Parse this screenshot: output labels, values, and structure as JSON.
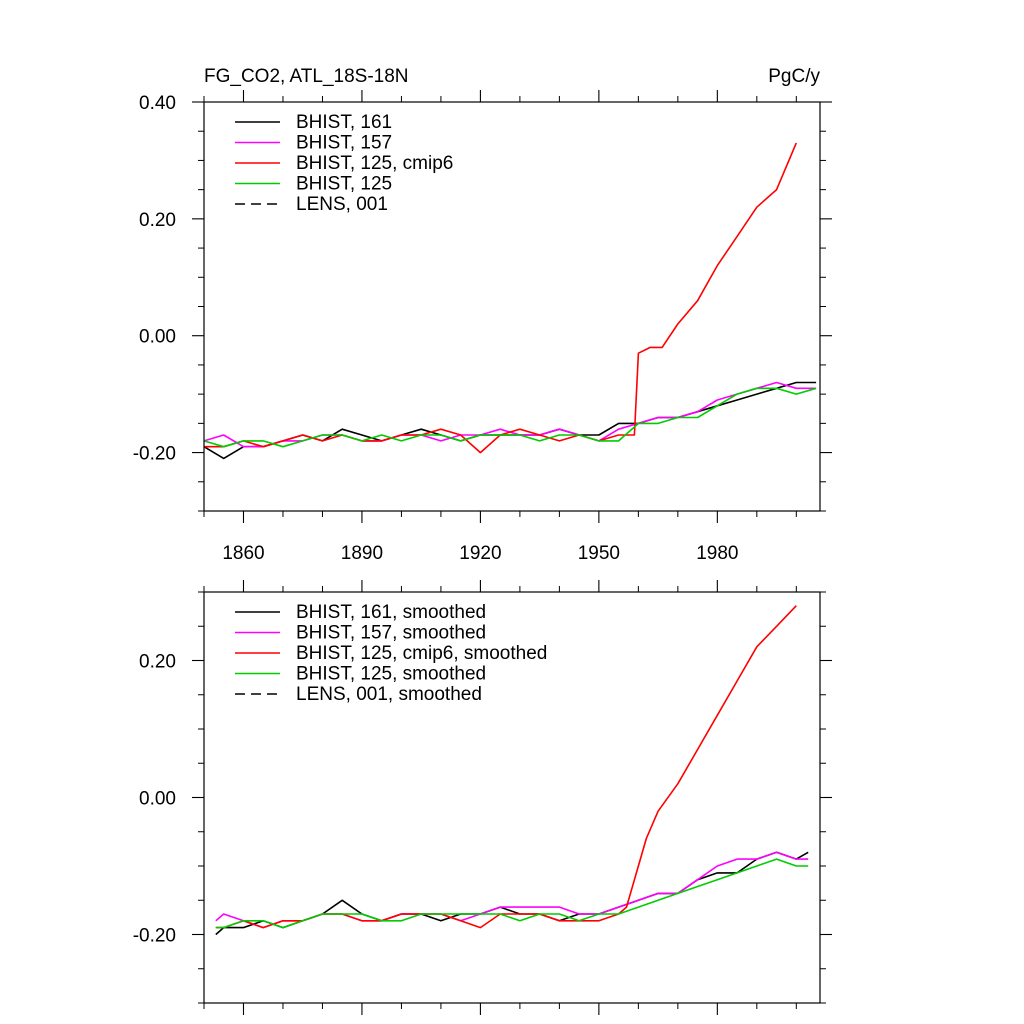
{
  "header": {
    "left": "FG_CO2, ATL_18S-18N",
    "right": "PgC/y"
  },
  "chart_data": [
    {
      "type": "line",
      "title": "FG_CO2, ATL_18S-18N",
      "units": "PgC/y",
      "xlim": [
        1850,
        2006
      ],
      "ylim": [
        -0.3,
        0.4
      ],
      "xticks": [
        1860,
        1890,
        1920,
        1950,
        1980
      ],
      "xtick_labels": [
        "1860",
        "1890",
        "1920",
        "1950",
        "1980"
      ],
      "yticks": [
        -0.2,
        0.0,
        0.2,
        0.4
      ],
      "ytick_labels": [
        "-0.20",
        "0.00",
        "0.20",
        "0.40"
      ],
      "legend_position": "top-left",
      "series": [
        {
          "name": "BHIST, 161",
          "color": "#000000",
          "dash": "solid",
          "x": [
            1850,
            1855,
            1860,
            1865,
            1870,
            1875,
            1880,
            1885,
            1890,
            1895,
            1900,
            1905,
            1910,
            1915,
            1920,
            1925,
            1930,
            1935,
            1940,
            1945,
            1950,
            1955,
            1960,
            1965,
            1970,
            1975,
            1980,
            1985,
            1990,
            1995,
            2000,
            2005
          ],
          "y": [
            -0.19,
            -0.21,
            -0.19,
            -0.19,
            -0.18,
            -0.17,
            -0.18,
            -0.16,
            -0.17,
            -0.18,
            -0.17,
            -0.16,
            -0.17,
            -0.18,
            -0.17,
            -0.17,
            -0.17,
            -0.17,
            -0.16,
            -0.17,
            -0.17,
            -0.15,
            -0.15,
            -0.14,
            -0.14,
            -0.13,
            -0.12,
            -0.11,
            -0.1,
            -0.09,
            -0.08,
            -0.08
          ]
        },
        {
          "name": "BHIST, 157",
          "color": "#ff00ff",
          "dash": "solid",
          "x": [
            1850,
            1855,
            1860,
            1865,
            1870,
            1875,
            1880,
            1885,
            1890,
            1895,
            1900,
            1905,
            1910,
            1915,
            1920,
            1925,
            1930,
            1935,
            1940,
            1945,
            1950,
            1955,
            1960,
            1965,
            1970,
            1975,
            1980,
            1985,
            1990,
            1995,
            2000,
            2005
          ],
          "y": [
            -0.18,
            -0.17,
            -0.19,
            -0.19,
            -0.18,
            -0.18,
            -0.17,
            -0.17,
            -0.18,
            -0.18,
            -0.17,
            -0.17,
            -0.18,
            -0.17,
            -0.17,
            -0.16,
            -0.17,
            -0.17,
            -0.16,
            -0.17,
            -0.18,
            -0.16,
            -0.15,
            -0.14,
            -0.14,
            -0.13,
            -0.11,
            -0.1,
            -0.09,
            -0.08,
            -0.09,
            -0.09
          ]
        },
        {
          "name": "BHIST, 125, cmip6",
          "color": "#ff0000",
          "dash": "solid",
          "x": [
            1850,
            1855,
            1860,
            1865,
            1870,
            1875,
            1880,
            1885,
            1890,
            1895,
            1900,
            1905,
            1910,
            1915,
            1920,
            1925,
            1930,
            1935,
            1940,
            1945,
            1950,
            1955,
            1959,
            1960,
            1963,
            1966,
            1970,
            1975,
            1980,
            1985,
            1990,
            1995,
            2000
          ],
          "y": [
            -0.19,
            -0.19,
            -0.18,
            -0.19,
            -0.18,
            -0.17,
            -0.18,
            -0.17,
            -0.18,
            -0.18,
            -0.17,
            -0.17,
            -0.16,
            -0.17,
            -0.2,
            -0.17,
            -0.16,
            -0.17,
            -0.18,
            -0.17,
            -0.18,
            -0.17,
            -0.17,
            -0.03,
            -0.02,
            -0.02,
            0.02,
            0.06,
            0.12,
            0.17,
            0.22,
            0.25,
            0.33
          ]
        },
        {
          "name": "BHIST, 125",
          "color": "#00cc00",
          "dash": "solid",
          "x": [
            1850,
            1855,
            1860,
            1865,
            1870,
            1875,
            1880,
            1885,
            1890,
            1895,
            1900,
            1905,
            1910,
            1915,
            1920,
            1925,
            1930,
            1935,
            1940,
            1945,
            1950,
            1955,
            1960,
            1965,
            1970,
            1975,
            1980,
            1985,
            1990,
            1995,
            2000,
            2005
          ],
          "y": [
            -0.18,
            -0.19,
            -0.18,
            -0.18,
            -0.19,
            -0.18,
            -0.17,
            -0.17,
            -0.18,
            -0.17,
            -0.18,
            -0.17,
            -0.17,
            -0.18,
            -0.17,
            -0.17,
            -0.17,
            -0.18,
            -0.17,
            -0.17,
            -0.18,
            -0.18,
            -0.15,
            -0.15,
            -0.14,
            -0.14,
            -0.12,
            -0.1,
            -0.09,
            -0.09,
            -0.1,
            -0.09
          ]
        },
        {
          "name": "LENS, 001",
          "color": "#000000",
          "dash": "dashed",
          "x": [],
          "y": []
        }
      ]
    },
    {
      "type": "line",
      "title": "",
      "xlim": [
        1850,
        2006
      ],
      "ylim": [
        -0.3,
        0.3
      ],
      "xticks": [
        1860,
        1890,
        1920,
        1950,
        1980
      ],
      "xtick_labels": [],
      "yticks": [
        -0.2,
        0.0,
        0.2
      ],
      "ytick_labels": [
        "-0.20",
        "0.00",
        "0.20"
      ],
      "legend_position": "top-left",
      "series": [
        {
          "name": "BHIST, 161, smoothed",
          "color": "#000000",
          "dash": "solid",
          "x": [
            1853,
            1855,
            1860,
            1865,
            1870,
            1875,
            1880,
            1885,
            1890,
            1895,
            1900,
            1905,
            1910,
            1915,
            1920,
            1925,
            1930,
            1935,
            1940,
            1945,
            1950,
            1955,
            1960,
            1965,
            1970,
            1975,
            1980,
            1985,
            1990,
            1995,
            2000,
            2003
          ],
          "y": [
            -0.2,
            -0.19,
            -0.19,
            -0.18,
            -0.19,
            -0.18,
            -0.17,
            -0.15,
            -0.17,
            -0.18,
            -0.17,
            -0.17,
            -0.18,
            -0.17,
            -0.17,
            -0.16,
            -0.17,
            -0.17,
            -0.18,
            -0.17,
            -0.17,
            -0.16,
            -0.15,
            -0.14,
            -0.14,
            -0.12,
            -0.11,
            -0.11,
            -0.09,
            -0.08,
            -0.09,
            -0.08
          ]
        },
        {
          "name": "BHIST, 157, smoothed",
          "color": "#ff00ff",
          "dash": "solid",
          "x": [
            1853,
            1855,
            1860,
            1865,
            1870,
            1875,
            1880,
            1885,
            1890,
            1895,
            1900,
            1905,
            1910,
            1915,
            1920,
            1925,
            1930,
            1935,
            1940,
            1945,
            1950,
            1955,
            1960,
            1965,
            1970,
            1975,
            1980,
            1985,
            1990,
            1995,
            2000,
            2003
          ],
          "y": [
            -0.18,
            -0.17,
            -0.18,
            -0.19,
            -0.18,
            -0.18,
            -0.17,
            -0.17,
            -0.18,
            -0.18,
            -0.17,
            -0.17,
            -0.17,
            -0.18,
            -0.17,
            -0.16,
            -0.16,
            -0.16,
            -0.16,
            -0.17,
            -0.17,
            -0.16,
            -0.15,
            -0.14,
            -0.14,
            -0.12,
            -0.1,
            -0.09,
            -0.09,
            -0.08,
            -0.09,
            -0.09
          ]
        },
        {
          "name": "BHIST, 125, cmip6, smoothed",
          "color": "#ff0000",
          "dash": "solid",
          "x": [
            1853,
            1855,
            1860,
            1865,
            1870,
            1875,
            1880,
            1885,
            1890,
            1895,
            1900,
            1905,
            1910,
            1915,
            1920,
            1925,
            1930,
            1935,
            1940,
            1945,
            1950,
            1955,
            1957,
            1962,
            1965,
            1970,
            1975,
            1980,
            1985,
            1990,
            1995,
            2000
          ],
          "y": [
            -0.19,
            -0.19,
            -0.18,
            -0.19,
            -0.18,
            -0.18,
            -0.17,
            -0.17,
            -0.18,
            -0.18,
            -0.17,
            -0.17,
            -0.17,
            -0.18,
            -0.19,
            -0.17,
            -0.17,
            -0.17,
            -0.18,
            -0.18,
            -0.18,
            -0.17,
            -0.16,
            -0.06,
            -0.02,
            0.02,
            0.07,
            0.12,
            0.17,
            0.22,
            0.25,
            0.28
          ]
        },
        {
          "name": "BHIST, 125, smoothed",
          "color": "#00cc00",
          "dash": "solid",
          "x": [
            1853,
            1855,
            1860,
            1865,
            1870,
            1875,
            1880,
            1885,
            1890,
            1895,
            1900,
            1905,
            1910,
            1915,
            1920,
            1925,
            1930,
            1935,
            1940,
            1945,
            1950,
            1955,
            1960,
            1965,
            1970,
            1975,
            1980,
            1985,
            1990,
            1995,
            2000,
            2003
          ],
          "y": [
            -0.19,
            -0.19,
            -0.18,
            -0.18,
            -0.19,
            -0.18,
            -0.17,
            -0.17,
            -0.17,
            -0.18,
            -0.18,
            -0.17,
            -0.17,
            -0.17,
            -0.17,
            -0.17,
            -0.18,
            -0.17,
            -0.17,
            -0.18,
            -0.17,
            -0.17,
            -0.16,
            -0.15,
            -0.14,
            -0.13,
            -0.12,
            -0.11,
            -0.1,
            -0.09,
            -0.1,
            -0.1
          ]
        },
        {
          "name": "LENS, 001, smoothed",
          "color": "#000000",
          "dash": "dashed",
          "x": [],
          "y": []
        }
      ]
    }
  ]
}
